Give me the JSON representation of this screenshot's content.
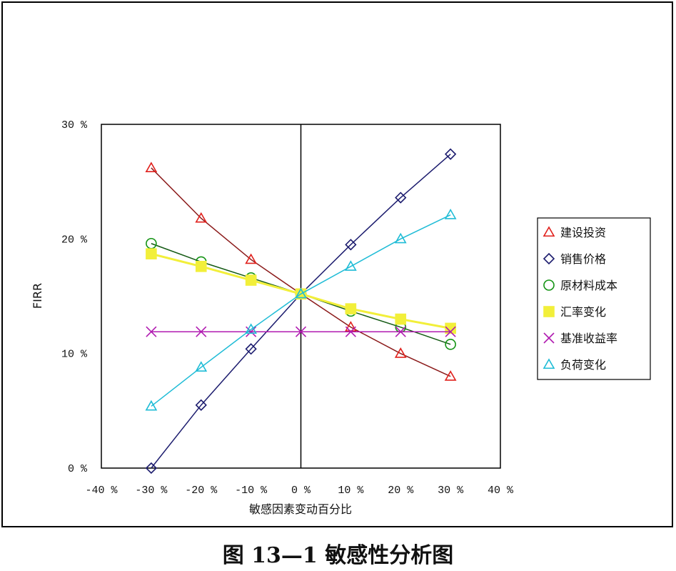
{
  "caption": "图 13—1 敏感性分析图",
  "chart_data": {
    "type": "line",
    "title": "",
    "xlabel": "敏感因素变动百分比",
    "ylabel": "FIRR",
    "x": [
      -30,
      -20,
      -10,
      0,
      10,
      20,
      30
    ],
    "xlim": [
      -40,
      40
    ],
    "ylim": [
      0,
      30
    ],
    "x_tick_labels": [
      "-40 %",
      "-30 %",
      "-20 %",
      "-10 %",
      "0 %",
      "10 %",
      "20 %",
      "30 %",
      "40 %"
    ],
    "y_tick_labels": [
      "0 %",
      "10 %",
      "20 %",
      "30 %"
    ],
    "grid": false,
    "legend_position": "right",
    "series": [
      {
        "name": "建设投资",
        "marker": "triangle",
        "line_color": "#8b1a1a",
        "marker_color": "#e0201c",
        "values": [
          26.2,
          21.8,
          18.2,
          15.2,
          12.3,
          10.0,
          8.0
        ]
      },
      {
        "name": "销售价格",
        "marker": "diamond",
        "line_color": "#1c1c6e",
        "marker_color": "#1c1c6e",
        "values": [
          0.0,
          5.5,
          10.4,
          15.2,
          19.5,
          23.6,
          27.4
        ]
      },
      {
        "name": "原材料成本",
        "marker": "circle",
        "line_color": "#145a14",
        "marker_color": "#149414",
        "values": [
          19.6,
          18.0,
          16.6,
          15.2,
          13.7,
          12.3,
          10.8
        ]
      },
      {
        "name": "汇率变化",
        "marker": "square",
        "line_color": "#f2ef3a",
        "marker_color": "#f2ef3a",
        "values": [
          18.7,
          17.6,
          16.4,
          15.2,
          13.9,
          13.0,
          12.2
        ]
      },
      {
        "name": "基准收益率",
        "marker": "x",
        "line_color": "#b01ab0",
        "marker_color": "#b01ab0",
        "values": [
          11.9,
          11.9,
          11.9,
          11.9,
          11.9,
          11.9,
          11.9
        ]
      },
      {
        "name": "负荷变化",
        "marker": "triangle",
        "line_color": "#1fbcd6",
        "marker_color": "#1fbcd6",
        "values": [
          5.4,
          8.8,
          12.1,
          15.2,
          17.6,
          20.0,
          22.1
        ]
      }
    ]
  }
}
